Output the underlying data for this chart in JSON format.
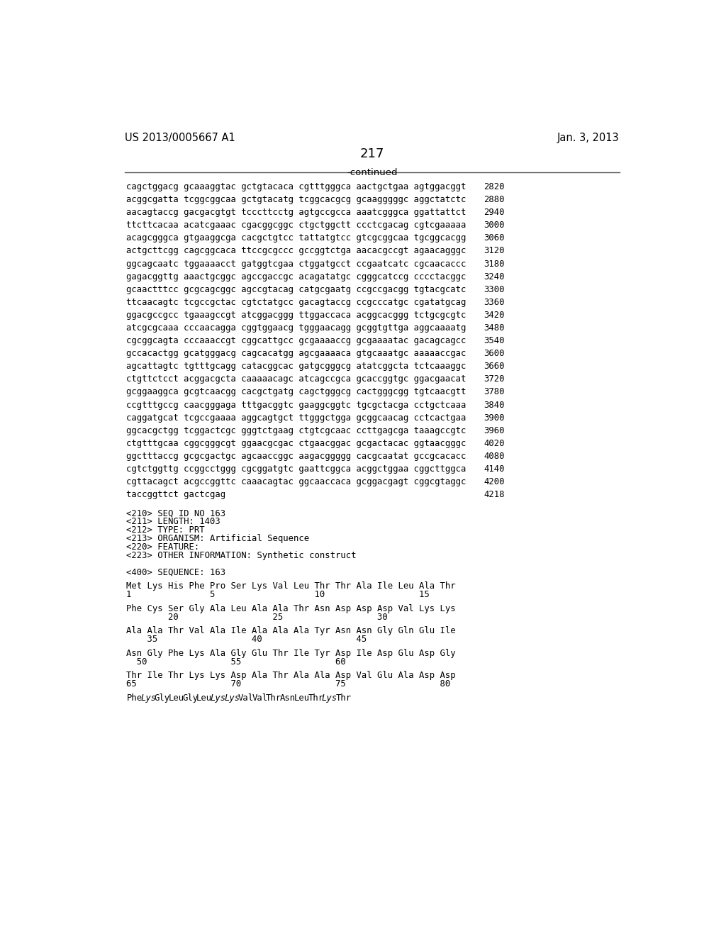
{
  "bg_color": "#ffffff",
  "text_color": "#000000",
  "header_left": "US 2013/0005667 A1",
  "header_right": "Jan. 3, 2013",
  "page_number": "217",
  "continued_label": "-continued",
  "sequence_lines": [
    [
      "cagctggacg gcaaaggtac gctgtacaca cgtttgggca aactgctgaa agtggacggt",
      "2820"
    ],
    [
      "acggcgatta tcggcggcaa gctgtacatg tcggcacgcg gcaagggggc aggctatctc",
      "2880"
    ],
    [
      "aacagtaccg gacgacgtgt tcccttcctg agtgccgcca aaatcgggca ggattattct",
      "2940"
    ],
    [
      "ttcttcacaa acatcgaaac cgacggcggc ctgctggctt ccctcgacag cgtcgaaaaa",
      "3000"
    ],
    [
      "acagcgggca gtgaaggcga cacgctgtcc tattatgtcc gtcgcggcaa tgcggcacgg",
      "3060"
    ],
    [
      "actgcttcgg cagcggcaca ttccgcgccc gccggtctga aacacgccgt agaacagggc",
      "3120"
    ],
    [
      "ggcagcaatc tggaaaacct gatggtcgaa ctggatgcct ccgaatcatc cgcaacaccc",
      "3180"
    ],
    [
      "gagacggttg aaactgcggc agccgaccgc acagatatgc cgggcatccg cccctacggc",
      "3240"
    ],
    [
      "gcaactttcc gcgcagcggc agccgtacag catgcgaatg ccgccgacgg tgtacgcatc",
      "3300"
    ],
    [
      "ttcaacagtc tcgccgctac cgtctatgcc gacagtaccg ccgcccatgc cgatatgcag",
      "3360"
    ],
    [
      "ggacgccgcc tgaaagccgt atcggacggg ttggaccaca acggcacggg tctgcgcgtc",
      "3420"
    ],
    [
      "atcgcgcaaa cccaacagga cggtggaacg tgggaacagg gcggtgttga aggcaaaatg",
      "3480"
    ],
    [
      "cgcggcagta cccaaaccgt cggcattgcc gcgaaaaccg gcgaaaatac gacagcagcc",
      "3540"
    ],
    [
      "gccacactgg gcatgggacg cagcacatgg agcgaaaaca gtgcaaatgc aaaaaccgac",
      "3600"
    ],
    [
      "agcattagtc tgtttgcagg catacggcac gatgcgggcg atatcggcta tctcaaaggc",
      "3660"
    ],
    [
      "ctgttctcct acggacgcta caaaaacagc atcagccgca gcaccggtgc ggacgaacat",
      "3720"
    ],
    [
      "gcggaaggca gcgtcaacgg cacgctgatg cagctgggcg cactgggcgg tgtcaacgtt",
      "3780"
    ],
    [
      "ccgtttgccg caacgggaga tttgacggtc gaaggcggtc tgcgctacga cctgctcaaa",
      "3840"
    ],
    [
      "caggatgcat tcgccgaaaa aggcagtgct ttgggctgga gcggcaacag cctcactgaa",
      "3900"
    ],
    [
      "ggcacgctgg tcggactcgc gggtctgaag ctgtcgcaac ccttgagcga taaagccgtc",
      "3960"
    ],
    [
      "ctgtttgcaa cggcgggcgt ggaacgcgac ctgaacggac gcgactacac ggtaacgggc",
      "4020"
    ],
    [
      "ggctttaccg gcgcgactgc agcaaccggc aagacggggg cacgcaatat gccgcacacc",
      "4080"
    ],
    [
      "cgtctggttg ccggcctggg cgcggatgtc gaattcggca acggctggaa cggcttggca",
      "4140"
    ],
    [
      "cgttacagct acgccggttc caaacagtac ggcaaccaca gcggacgagt cggcgtaggc",
      "4200"
    ],
    [
      "taccggttct gactcgag",
      "4218"
    ]
  ],
  "metadata_lines": [
    "<210> SEQ ID NO 163",
    "<211> LENGTH: 1403",
    "<212> TYPE: PRT",
    "<213> ORGANISM: Artificial Sequence",
    "<220> FEATURE:",
    "<223> OTHER INFORMATION: Synthetic construct",
    "",
    "<400> SEQUENCE: 163"
  ],
  "protein_blocks": [
    {
      "residues": "Met Lys His Phe Pro Ser Lys Val Leu Thr Thr Ala Ile Leu Ala Thr",
      "numbers": "1               5                   10                  15",
      "italic_indices": []
    },
    {
      "residues": "Phe Cys Ser Gly Ala Leu Ala Ala Thr Asn Asp Asp Asp Val Lys Lys",
      "numbers": "        20                  25                  30",
      "italic_indices": []
    },
    {
      "residues": "Ala Ala Thr Val Ala Ile Ala Ala Ala Tyr Asn Asn Gly Gln Glu Ile",
      "numbers": "    35                  40                  45",
      "italic_indices": []
    },
    {
      "residues": "Asn Gly Phe Lys Ala Gly Glu Thr Ile Tyr Asp Ile Asp Glu Asp Gly",
      "numbers": "  50                55                  60",
      "italic_indices": []
    },
    {
      "residues": "Thr Ile Thr Lys Lys Asp Ala Thr Ala Ala Asp Val Glu Ala Asp Asp",
      "numbers": "65                  70                  75                  80",
      "italic_indices": []
    },
    {
      "residues": "Phe Lys Gly Leu Gly Leu Lys Lys Val Val Thr Asn Leu Thr Lys Thr",
      "numbers": "",
      "italic_indices": [
        1,
        6,
        7,
        14
      ]
    }
  ]
}
